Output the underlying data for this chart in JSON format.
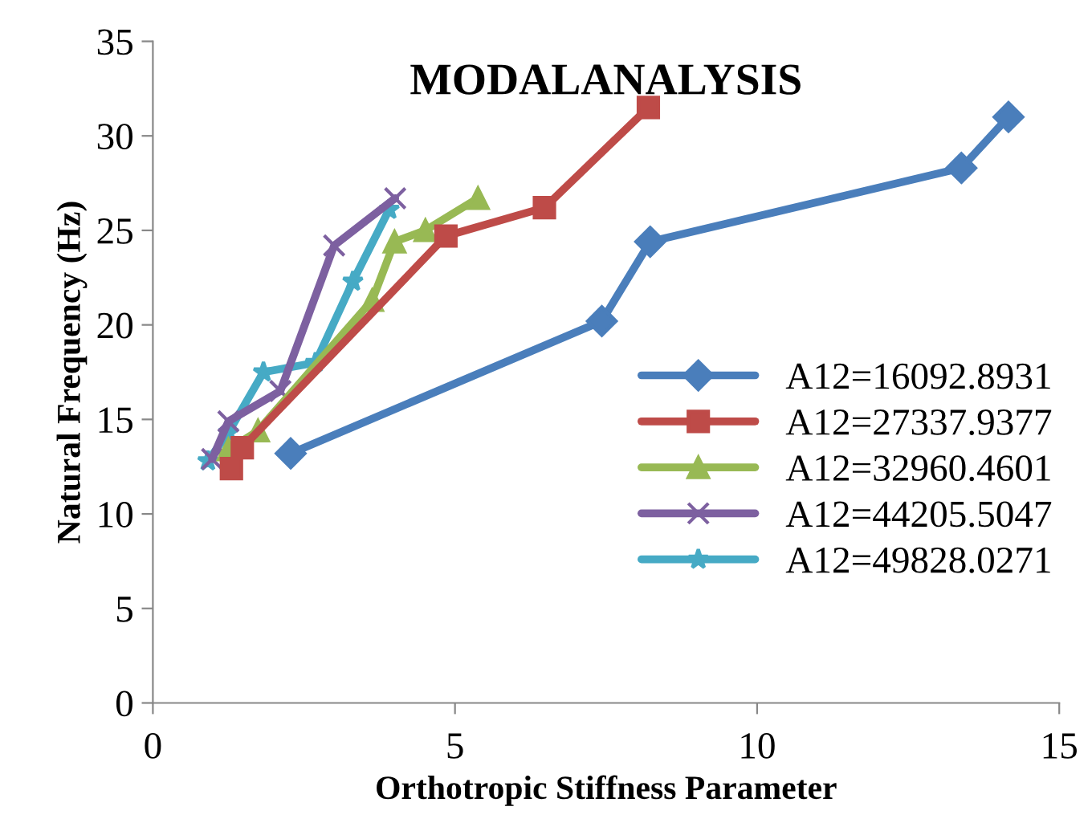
{
  "chart_data": {
    "type": "line",
    "title": "MODALANALYSIS",
    "xlabel": "Orthotropic Stiffness Parameter",
    "ylabel": "Natural Frequency (Hz)",
    "xlim": [
      0,
      15
    ],
    "xticks": [
      0,
      5,
      10,
      15
    ],
    "ylim": [
      0,
      35
    ],
    "yticks": [
      0,
      5,
      10,
      15,
      20,
      25,
      30,
      35
    ],
    "grid": false,
    "legend": "right",
    "line_style": "solid",
    "series": [
      {
        "name": "A12=16092.8931",
        "color": "#4a7ebb",
        "marker": "diamond",
        "x": [
          2.28,
          7.43,
          8.23,
          13.38,
          14.16
        ],
        "values": [
          13.2,
          20.2,
          24.4,
          28.3,
          31.0
        ]
      },
      {
        "name": "A12=27337.9377",
        "color": "#be4b48",
        "marker": "square",
        "x": [
          1.3,
          1.48,
          4.85,
          6.48,
          8.2
        ],
        "values": [
          12.4,
          13.5,
          24.7,
          26.2,
          31.5
        ]
      },
      {
        "name": "A12=32960.4601",
        "color": "#98b954",
        "marker": "triangle",
        "x": [
          1.25,
          1.74,
          3.63,
          4.0,
          4.51,
          5.38
        ],
        "values": [
          13.4,
          14.4,
          21.3,
          24.4,
          25.0,
          26.7
        ]
      },
      {
        "name": "A12=44205.5047",
        "color": "#7d60a0",
        "marker": "cross",
        "x": [
          0.98,
          1.25,
          2.11,
          3.0,
          4.01
        ],
        "values": [
          12.9,
          14.9,
          16.5,
          24.2,
          26.7
        ]
      },
      {
        "name": "A12=49828.0271",
        "color": "#46aac5",
        "marker": "star",
        "x": [
          0.91,
          1.25,
          1.83,
          2.69,
          3.31,
          3.91
        ],
        "values": [
          12.8,
          14.3,
          17.5,
          18.0,
          22.3,
          26.1
        ]
      }
    ]
  }
}
